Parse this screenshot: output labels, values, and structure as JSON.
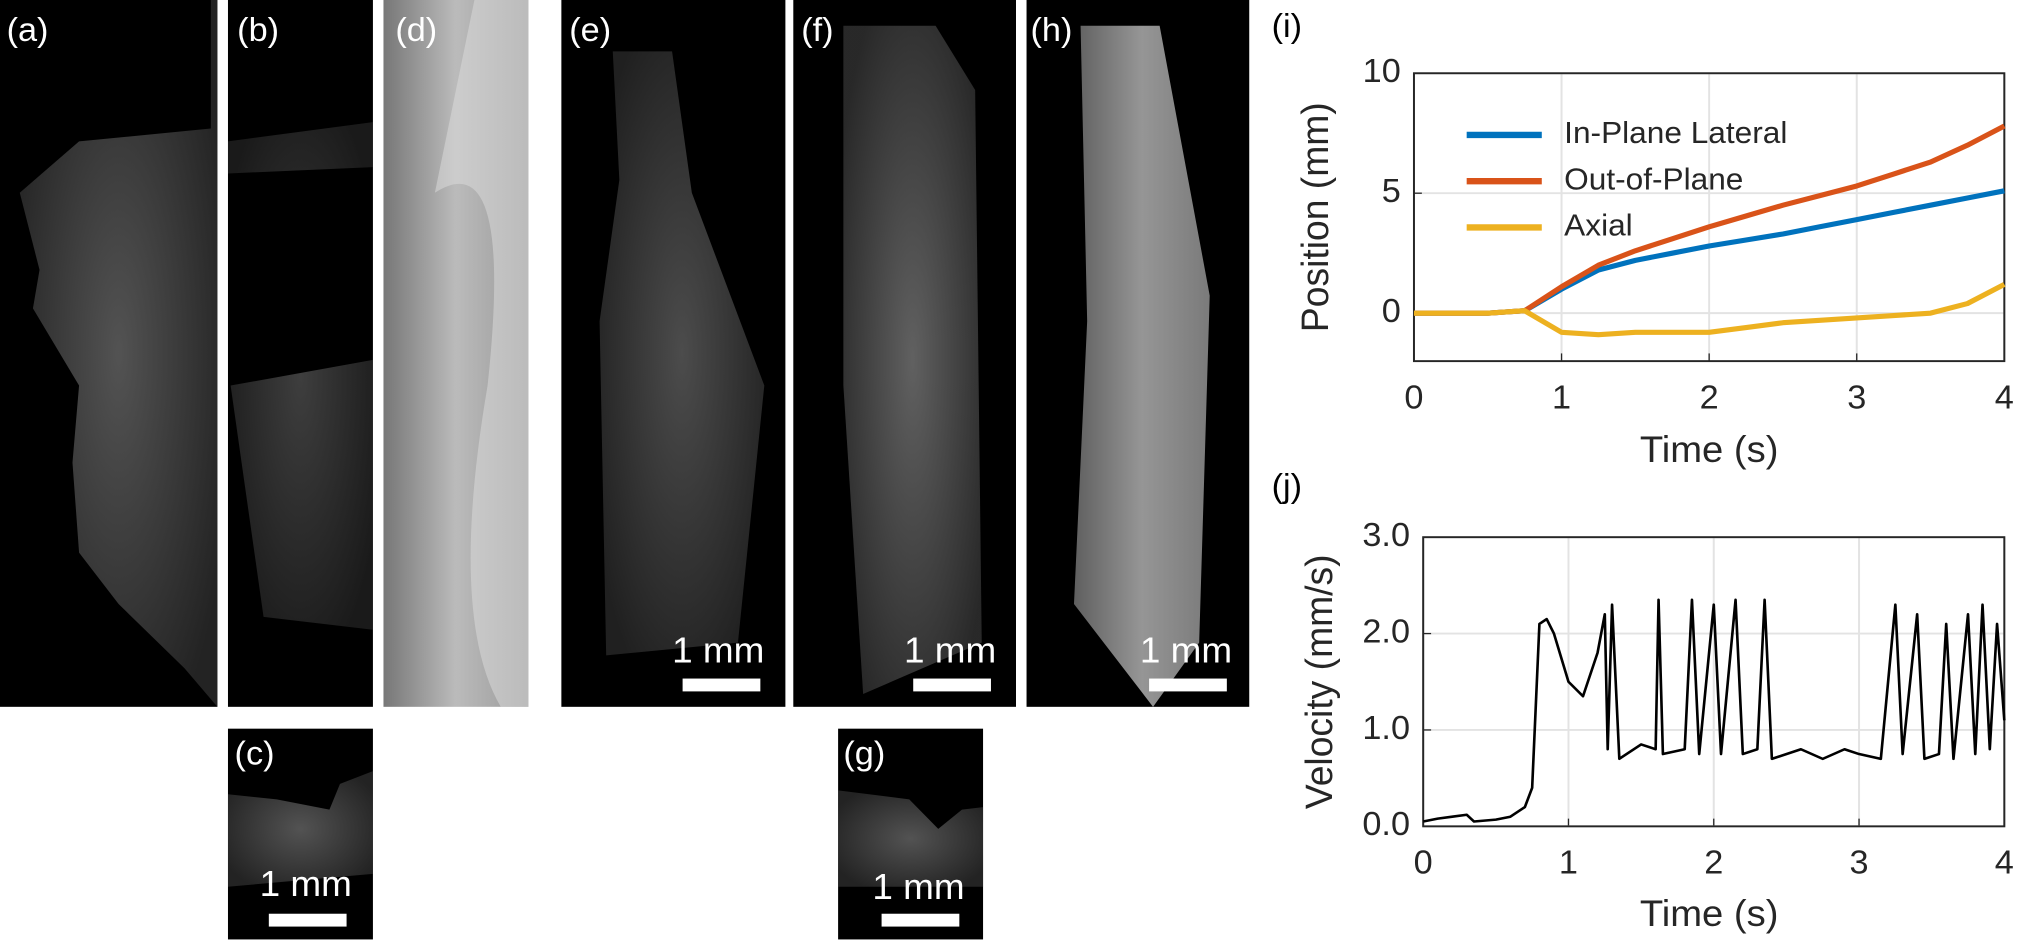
{
  "panels": [
    {
      "label": "(a)"
    },
    {
      "label": "(b)"
    },
    {
      "label": "(d)"
    },
    {
      "label": "(e)",
      "scale_bar": "1 mm"
    },
    {
      "label": "(f)",
      "scale_bar": "1 mm"
    },
    {
      "label": "(h)",
      "scale_bar": "1 mm"
    },
    {
      "label": "(c)",
      "scale_bar": "1 mm"
    },
    {
      "label": "(g)",
      "scale_bar": "1 mm"
    },
    {
      "label": "(i)"
    },
    {
      "label": "(j)"
    }
  ],
  "chart_data": [
    {
      "type": "line",
      "x_label": "Time (s)",
      "y_label": "Position (mm)",
      "x": [
        0,
        0.25,
        0.5,
        0.75,
        1,
        1.25,
        1.5,
        1.75,
        2,
        2.25,
        2.5,
        2.75,
        3,
        3.25,
        3.5,
        3.75,
        4
      ],
      "series": [
        {
          "name": "In-Plane Lateral",
          "color": "#0072bd",
          "values": [
            0,
            0,
            0,
            0.1,
            1.0,
            1.8,
            2.2,
            2.5,
            2.8,
            3.05,
            3.3,
            3.6,
            3.9,
            4.2,
            4.5,
            4.8,
            5.1
          ]
        },
        {
          "name": "Out-of-Plane",
          "color": "#d95319",
          "values": [
            0,
            0,
            0,
            0.1,
            1.1,
            2.0,
            2.6,
            3.1,
            3.6,
            4.05,
            4.5,
            4.9,
            5.3,
            5.8,
            6.3,
            7.0,
            7.8
          ]
        },
        {
          "name": "Axial",
          "color": "#edb120",
          "values": [
            0,
            0,
            0,
            0.1,
            -0.8,
            -0.9,
            -0.8,
            -0.8,
            -0.8,
            -0.6,
            -0.4,
            -0.3,
            -0.2,
            -0.1,
            0.0,
            0.4,
            1.2
          ]
        }
      ],
      "xlim": [
        0,
        4
      ],
      "ylim": [
        -2,
        10
      ],
      "xticks": [
        0,
        1,
        2,
        3,
        4
      ],
      "yticks": [
        0,
        5,
        10
      ],
      "grid": true,
      "legend": "upper left"
    },
    {
      "type": "line",
      "x_label": "Time (s)",
      "y_label": "Velocity (mm/s)",
      "x": [
        0,
        0.1,
        0.2,
        0.3,
        0.35,
        0.5,
        0.6,
        0.7,
        0.75,
        0.8,
        0.85,
        0.9,
        1.0,
        1.1,
        1.2,
        1.25,
        1.27,
        1.3,
        1.35,
        1.5,
        1.6,
        1.62,
        1.65,
        1.8,
        1.85,
        1.9,
        2.0,
        2.05,
        2.15,
        2.2,
        2.3,
        2.35,
        2.4,
        2.6,
        2.75,
        2.9,
        3.0,
        3.15,
        3.25,
        3.3,
        3.4,
        3.45,
        3.55,
        3.6,
        3.65,
        3.75,
        3.8,
        3.85,
        3.9,
        3.95,
        4.0
      ],
      "series": [
        {
          "color": "#000000",
          "values": [
            0.05,
            0.08,
            0.1,
            0.12,
            0.05,
            0.07,
            0.1,
            0.2,
            0.4,
            2.1,
            2.15,
            2.0,
            1.5,
            1.35,
            1.8,
            2.2,
            0.8,
            2.3,
            0.7,
            0.85,
            0.8,
            2.35,
            0.75,
            0.8,
            2.35,
            0.75,
            2.3,
            0.75,
            2.35,
            0.75,
            0.8,
            2.35,
            0.7,
            0.8,
            0.7,
            0.8,
            0.75,
            0.7,
            2.3,
            0.75,
            2.2,
            0.7,
            0.75,
            2.1,
            0.7,
            2.2,
            0.75,
            2.3,
            0.8,
            2.1,
            1.1
          ]
        }
      ],
      "xlim": [
        0,
        4
      ],
      "ylim": [
        0,
        3
      ],
      "xticks": [
        0,
        1,
        2,
        3,
        4
      ],
      "yticks": [
        {
          "value": 0,
          "label": "0.0"
        },
        {
          "value": 1,
          "label": "1.0"
        },
        {
          "value": 2,
          "label": "2.0"
        },
        {
          "value": 3,
          "label": "3.0"
        }
      ],
      "grid": true
    }
  ]
}
